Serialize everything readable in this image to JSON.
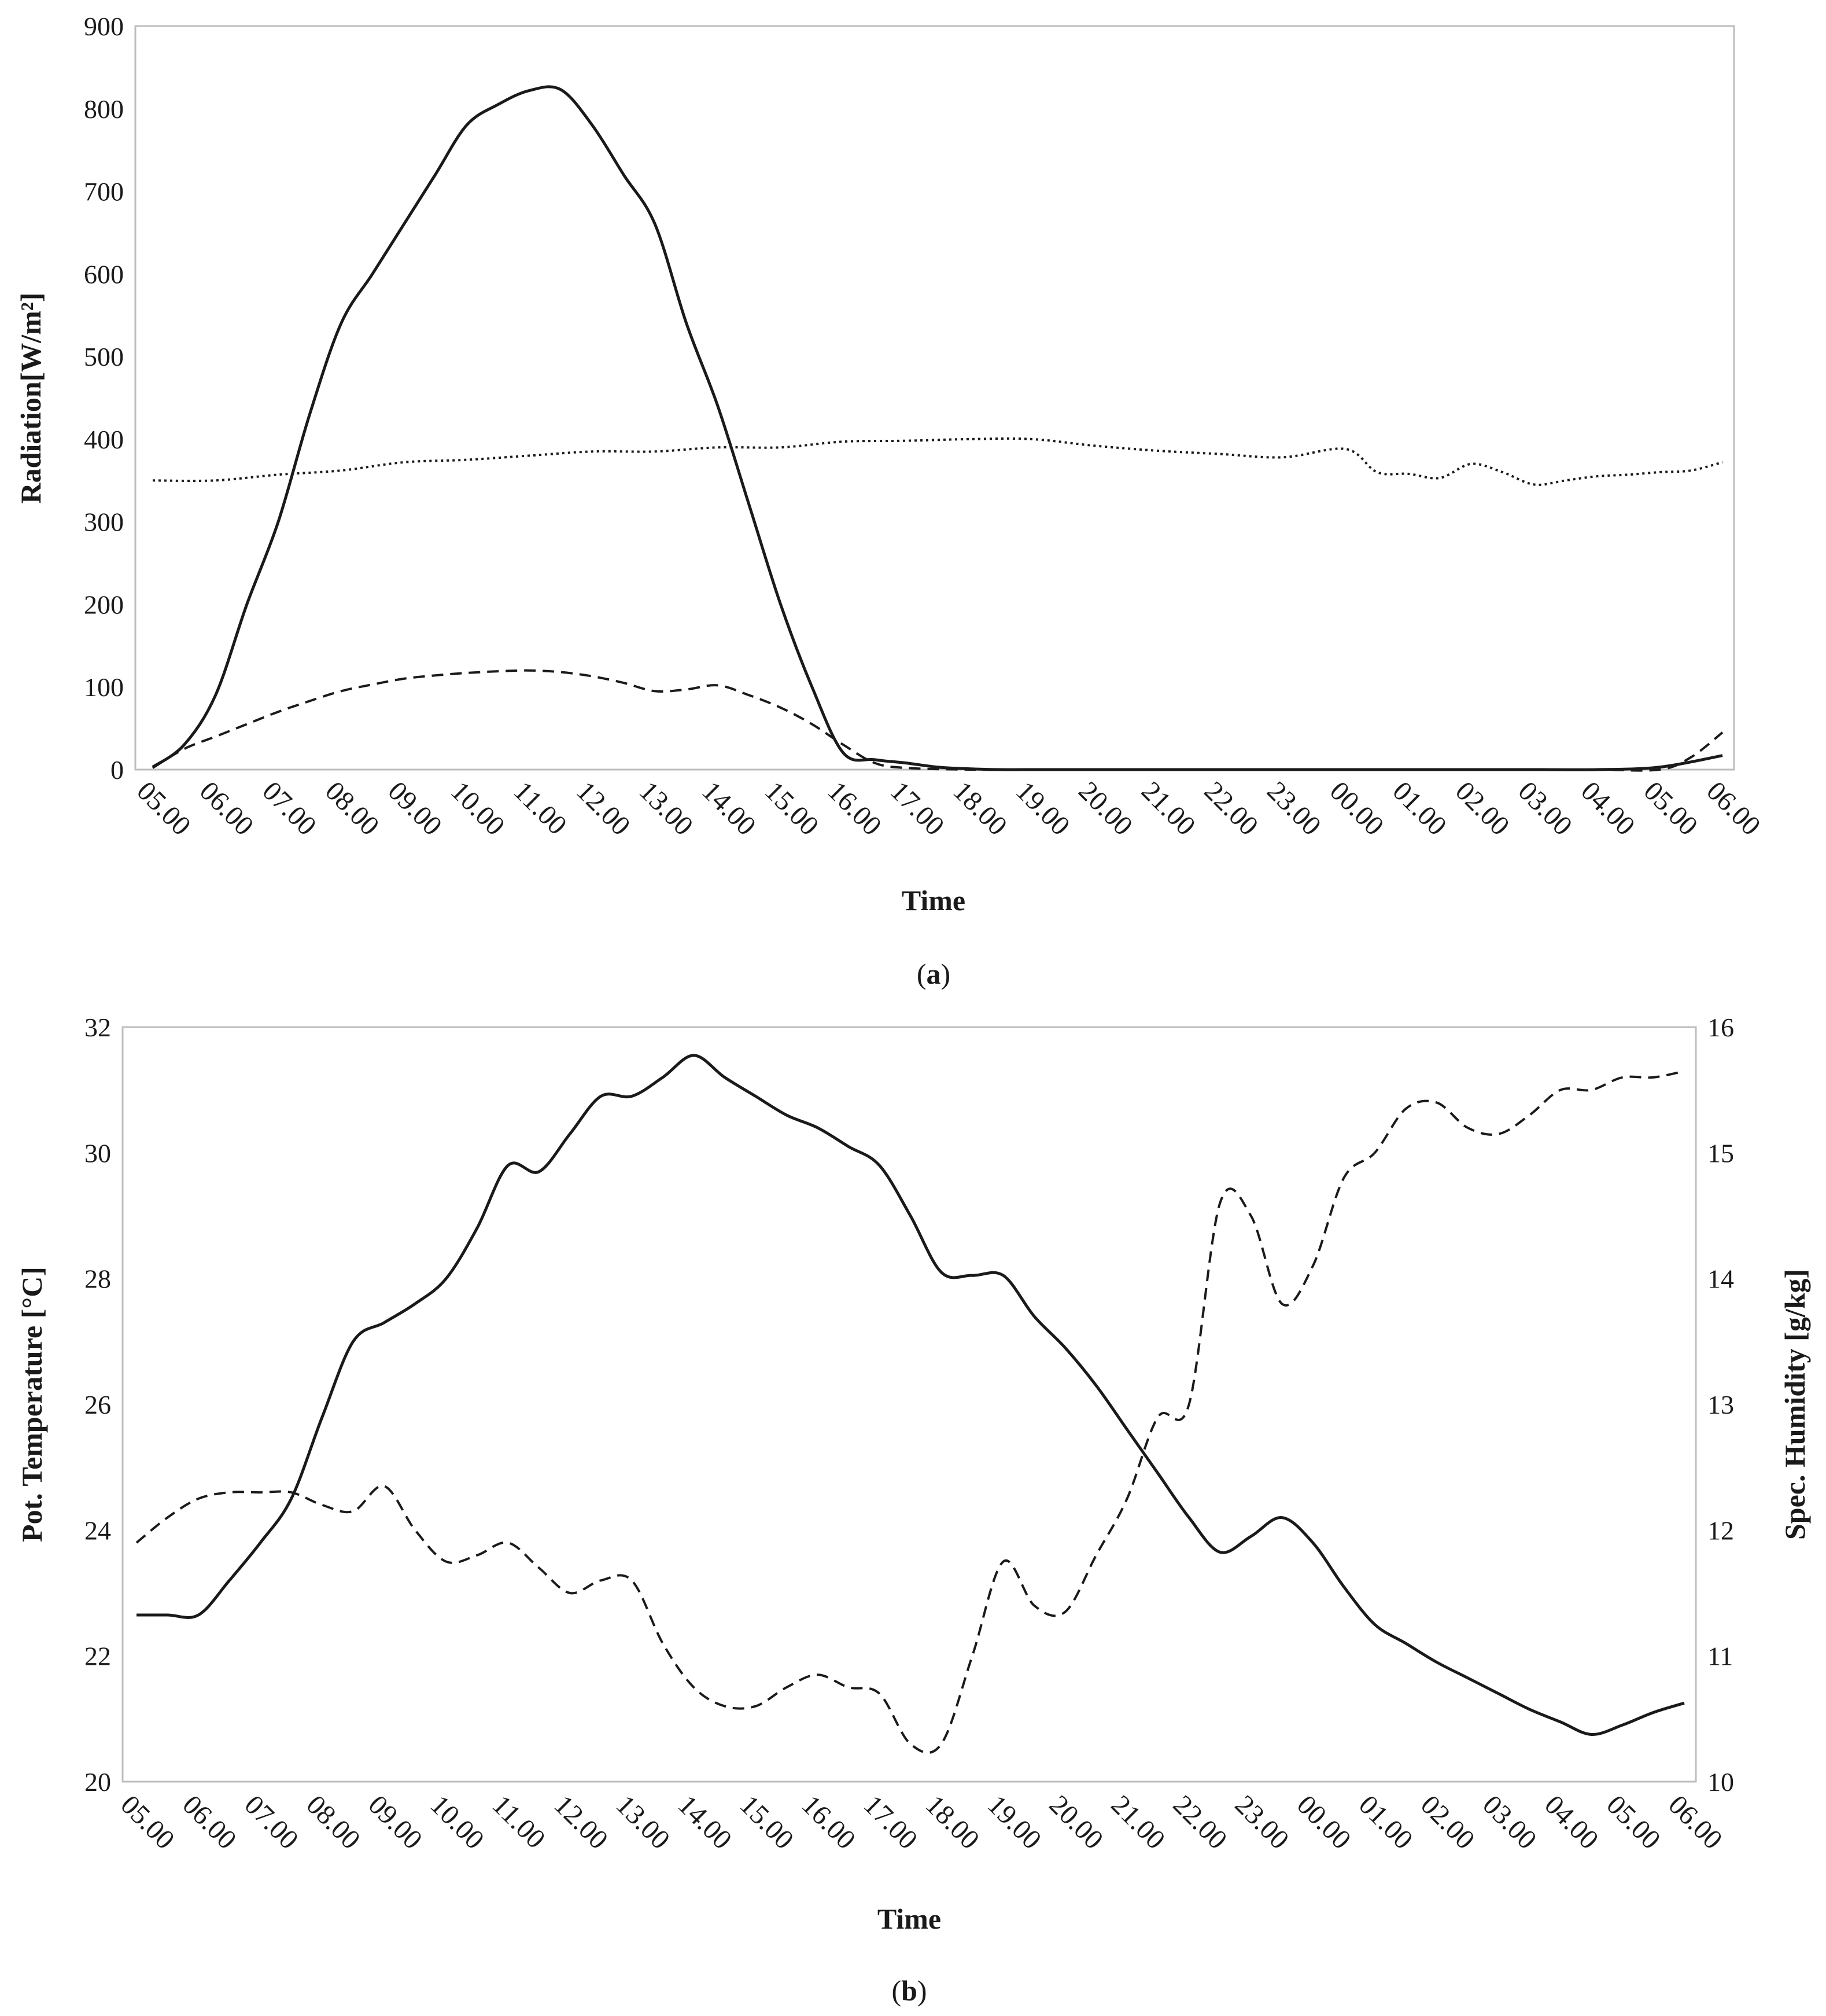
{
  "chart_data": [
    {
      "type": "line",
      "caption_letter": "a",
      "title": "",
      "xlabel": "Time",
      "ylabel": "Radiation[W/m²]",
      "ylim": [
        0,
        900
      ],
      "yticks": [
        "0",
        "100",
        "200",
        "300",
        "400",
        "500",
        "600",
        "700",
        "800",
        "900"
      ],
      "categories": [
        "05.00",
        "06.00",
        "07.00",
        "08.00",
        "09.00",
        "10.00",
        "11.00",
        "12.00",
        "13.00",
        "14.00",
        "15.00",
        "16.00",
        "17.00",
        "18.00",
        "19.00",
        "20.00",
        "21.00",
        "22.00",
        "23.00",
        "00.00",
        "01.00",
        "02.00",
        "03.00",
        "04.00",
        "05.00",
        "06.00"
      ],
      "series": [
        {
          "name": "solid",
          "style": "solid",
          "x": [
            0,
            0.5,
            1,
            1.5,
            2,
            2.5,
            3,
            3.5,
            4,
            4.5,
            5,
            5.5,
            6,
            6.5,
            7,
            7.5,
            8,
            8.5,
            9,
            9.5,
            10,
            10.5,
            11,
            11.5,
            12,
            12.5,
            13,
            13.5,
            14,
            14.2,
            14.6,
            15,
            16,
            17,
            18,
            19,
            20,
            21,
            22,
            23,
            24,
            25
          ],
          "values": [
            3,
            30,
            90,
            200,
            300,
            430,
            540,
            600,
            660,
            720,
            780,
            805,
            822,
            823,
            780,
            720,
            660,
            540,
            440,
            320,
            200,
            100,
            20,
            12,
            8,
            3,
            1,
            0,
            0,
            0,
            0,
            0,
            0,
            0,
            0,
            0,
            0,
            0,
            0,
            0,
            3,
            17
          ]
        },
        {
          "name": "dashed",
          "style": "dashed",
          "x": [
            0,
            0.5,
            1,
            1.5,
            2,
            2.5,
            3,
            3.5,
            4,
            4.5,
            5,
            5.5,
            6,
            6.5,
            7,
            7.5,
            8,
            8.5,
            9,
            9.5,
            10,
            10.5,
            11,
            11.5,
            12,
            13,
            14,
            15,
            16,
            17,
            18,
            19,
            20,
            21,
            22,
            23,
            24,
            24.5,
            25
          ],
          "values": [
            2,
            25,
            40,
            55,
            70,
            83,
            95,
            103,
            110,
            114,
            117,
            119,
            120,
            118,
            113,
            105,
            95,
            97,
            102,
            90,
            75,
            55,
            30,
            8,
            2,
            0,
            0,
            0,
            0,
            0,
            0,
            0,
            0,
            0,
            0,
            0,
            0,
            15,
            45
          ]
        },
        {
          "name": "dotted",
          "style": "dotted",
          "x": [
            0,
            1,
            2,
            3,
            4,
            5,
            6,
            7,
            8,
            9,
            10,
            11,
            12,
            13,
            14,
            15,
            16,
            17,
            18,
            19,
            19.5,
            20,
            20.5,
            21,
            21.5,
            22,
            22.5,
            23,
            23.5,
            24,
            24.5,
            25
          ],
          "values": [
            350,
            350,
            357,
            362,
            372,
            375,
            380,
            385,
            385,
            390,
            390,
            397,
            398,
            400,
            400,
            392,
            386,
            382,
            378,
            388,
            360,
            358,
            353,
            370,
            360,
            345,
            350,
            355,
            357,
            360,
            362,
            372
          ]
        }
      ]
    },
    {
      "type": "line",
      "caption_letter": "b",
      "title": "",
      "xlabel": "Time",
      "ylabel": "Pot. Temperature [°C]",
      "ylabel_right": "Spec. Humidity [g/kg]",
      "ylim": [
        20,
        32
      ],
      "ylim_right": [
        10,
        16
      ],
      "yticks": [
        "20",
        "22",
        "24",
        "26",
        "28",
        "30",
        "32"
      ],
      "yticks_right": [
        "10",
        "11",
        "12",
        "13",
        "14",
        "15",
        "16"
      ],
      "categories": [
        "05.00",
        "06.00",
        "07.00",
        "08.00",
        "09.00",
        "10.00",
        "11.00",
        "12.00",
        "13.00",
        "14.00",
        "15.00",
        "16.00",
        "17.00",
        "18.00",
        "19.00",
        "20.00",
        "21.00",
        "22.00",
        "23.00",
        "00.00",
        "01.00",
        "02.00",
        "03.00",
        "04.00",
        "05.00",
        "06.00"
      ],
      "series": [
        {
          "name": "Pot. Temperature",
          "axis": "left",
          "style": "solid",
          "x": [
            0,
            0.5,
            1,
            1.5,
            2,
            2.5,
            3,
            3.5,
            4,
            4.5,
            5,
            5.5,
            6,
            6.5,
            7,
            7.5,
            8,
            8.5,
            9,
            9.5,
            10,
            10.5,
            11,
            11.5,
            12,
            12.5,
            13,
            13.5,
            14,
            14.5,
            15,
            15.5,
            16,
            16.5,
            17,
            17.5,
            18,
            18.5,
            19,
            19.5,
            20,
            20.5,
            21,
            21.5,
            22,
            22.5,
            23,
            23.5,
            24,
            24.5,
            25
          ],
          "values": [
            22.65,
            22.65,
            22.65,
            23.2,
            23.8,
            24.5,
            25.8,
            27.0,
            27.3,
            27.6,
            28.0,
            28.8,
            29.8,
            29.7,
            30.3,
            30.9,
            30.9,
            31.2,
            31.55,
            31.2,
            30.9,
            30.6,
            30.4,
            30.1,
            29.8,
            29.0,
            28.1,
            28.05,
            28.05,
            27.4,
            26.9,
            26.3,
            25.6,
            24.9,
            24.2,
            23.65,
            23.9,
            24.2,
            23.8,
            23.1,
            22.5,
            22.2,
            21.9,
            21.65,
            21.4,
            21.15,
            20.95,
            20.75,
            20.9,
            21.1,
            21.25
          ]
        },
        {
          "name": "Spec. Humidity",
          "axis": "right",
          "style": "dashed",
          "x": [
            0,
            0.5,
            1,
            1.5,
            2,
            2.5,
            3,
            3.5,
            4,
            4.5,
            5,
            5.5,
            6,
            6.5,
            7,
            7.5,
            8,
            8.5,
            9,
            9.5,
            10,
            10.5,
            11,
            11.5,
            12,
            12.5,
            13,
            13.5,
            14,
            14.5,
            15,
            15.5,
            16,
            16.5,
            17,
            17.5,
            18,
            18.5,
            19,
            19.5,
            20,
            20.5,
            21,
            21.5,
            22,
            22.5,
            23,
            23.5,
            24,
            24.5,
            25
          ],
          "values": [
            11.9,
            12.1,
            12.25,
            12.3,
            12.3,
            12.3,
            12.2,
            12.15,
            12.35,
            12.0,
            11.75,
            11.8,
            11.9,
            11.7,
            11.5,
            11.6,
            11.6,
            11.1,
            10.75,
            10.6,
            10.6,
            10.75,
            10.85,
            10.75,
            10.7,
            10.3,
            10.3,
            11.0,
            11.75,
            11.4,
            11.35,
            11.8,
            12.25,
            12.9,
            13.0,
            14.6,
            14.5,
            13.8,
            14.1,
            14.8,
            15.0,
            15.35,
            15.4,
            15.2,
            15.15,
            15.3,
            15.5,
            15.5,
            15.6,
            15.6,
            15.65
          ]
        }
      ]
    }
  ]
}
